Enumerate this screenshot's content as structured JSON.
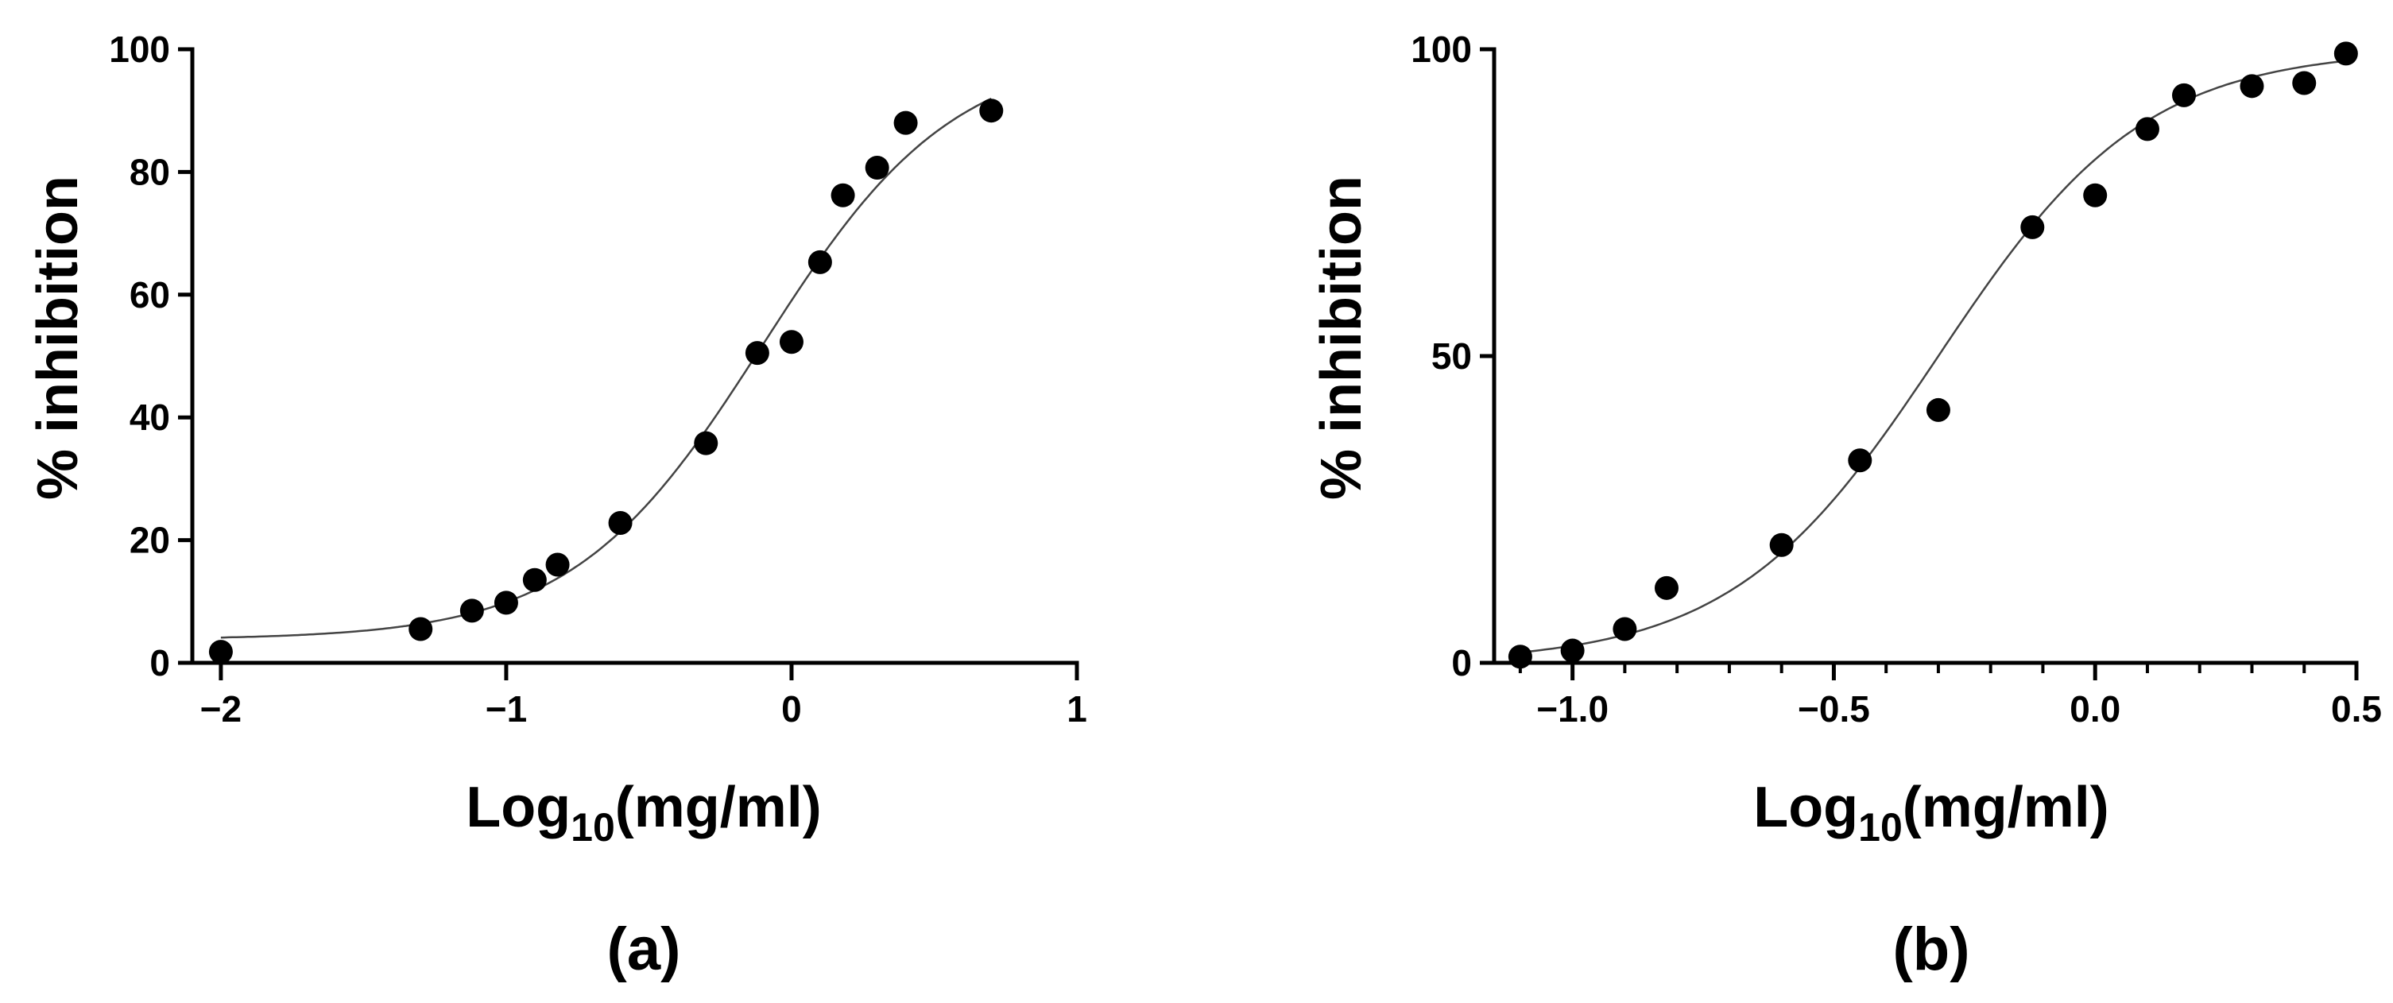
{
  "chart_data": [
    {
      "type": "scatter",
      "panel_label": "(a)",
      "xlabel": {
        "main": "Log",
        "sub": "10",
        "rest": "(mg/ml)"
      },
      "ylabel": "% inhibition",
      "xlim": [
        -2.1,
        1
      ],
      "ylim": [
        0,
        100
      ],
      "x_ticks": [
        -2,
        -1,
        0,
        1
      ],
      "x_tick_labels": [
        "−2",
        "−1",
        "0",
        "1"
      ],
      "y_ticks": [
        0,
        20,
        40,
        60,
        80,
        100
      ],
      "y_tick_labels": [
        "0",
        "20",
        "40",
        "60",
        "80",
        "100"
      ],
      "minor_x_ticks": [],
      "series": [
        {
          "name": "data",
          "x": [
            -2.0,
            -1.3,
            -1.12,
            -1.0,
            -0.9,
            -0.82,
            -0.6,
            -0.3,
            -0.12,
            0.0,
            0.1,
            0.18,
            0.3,
            0.4,
            0.7
          ],
          "y": [
            1.8,
            5.5,
            8.5,
            9.8,
            13.5,
            16.0,
            22.8,
            35.8,
            50.5,
            52.3,
            65.3,
            76.2,
            80.7,
            88.0,
            90.0
          ]
        }
      ],
      "fit": {
        "bottom": 3.8,
        "top": 100,
        "log_ec50": -0.1,
        "hill_slope": 1.3,
        "x_range": [
          -2.0,
          0.7
        ]
      }
    },
    {
      "type": "scatter",
      "panel_label": "(b)",
      "xlabel": {
        "main": "Log",
        "sub": "10",
        "rest": "(mg/ml)"
      },
      "ylabel": "% inhibition",
      "xlim": [
        -1.15,
        0.5
      ],
      "ylim": [
        0,
        100
      ],
      "x_ticks": [
        -1.0,
        -0.5,
        0.0,
        0.5
      ],
      "x_tick_labels": [
        "−1.0",
        "−0.5",
        "0.0",
        "0.5"
      ],
      "y_ticks": [
        0,
        50,
        100
      ],
      "y_tick_labels": [
        "0",
        "50",
        "100"
      ],
      "minor_x_ticks": [
        -1.1,
        -0.9,
        -0.8,
        -0.7,
        -0.6,
        -0.4,
        -0.3,
        -0.2,
        -0.1,
        0.1,
        0.2,
        0.3,
        0.4
      ],
      "series": [
        {
          "name": "data",
          "x": [
            -1.1,
            -1.0,
            -0.9,
            -0.82,
            -0.6,
            -0.45,
            -0.3,
            -0.12,
            0.0,
            0.1,
            0.17,
            0.3,
            0.4,
            0.48
          ],
          "y": [
            1.0,
            2.0,
            5.5,
            12.2,
            19.2,
            33.0,
            41.2,
            71.0,
            76.2,
            87.0,
            92.5,
            94.0,
            94.5,
            99.3
          ]
        }
      ],
      "fit": {
        "bottom": 0,
        "top": 100,
        "log_ec50": -0.3,
        "hill_slope": 2.2,
        "x_range": [
          -1.1,
          0.48
        ]
      }
    }
  ]
}
